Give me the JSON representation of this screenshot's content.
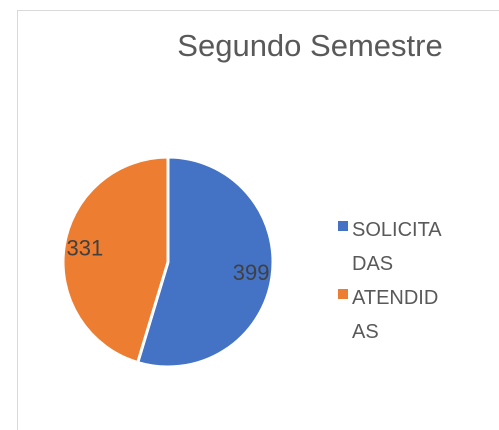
{
  "chart_data": {
    "type": "pie",
    "title": "Segundo Semestre",
    "categories": [
      "SOLICITADAS",
      "ATENDIDAS"
    ],
    "values": [
      399,
      331
    ],
    "colors": [
      "#4472c4",
      "#ed7d31"
    ],
    "legend": "right"
  }
}
